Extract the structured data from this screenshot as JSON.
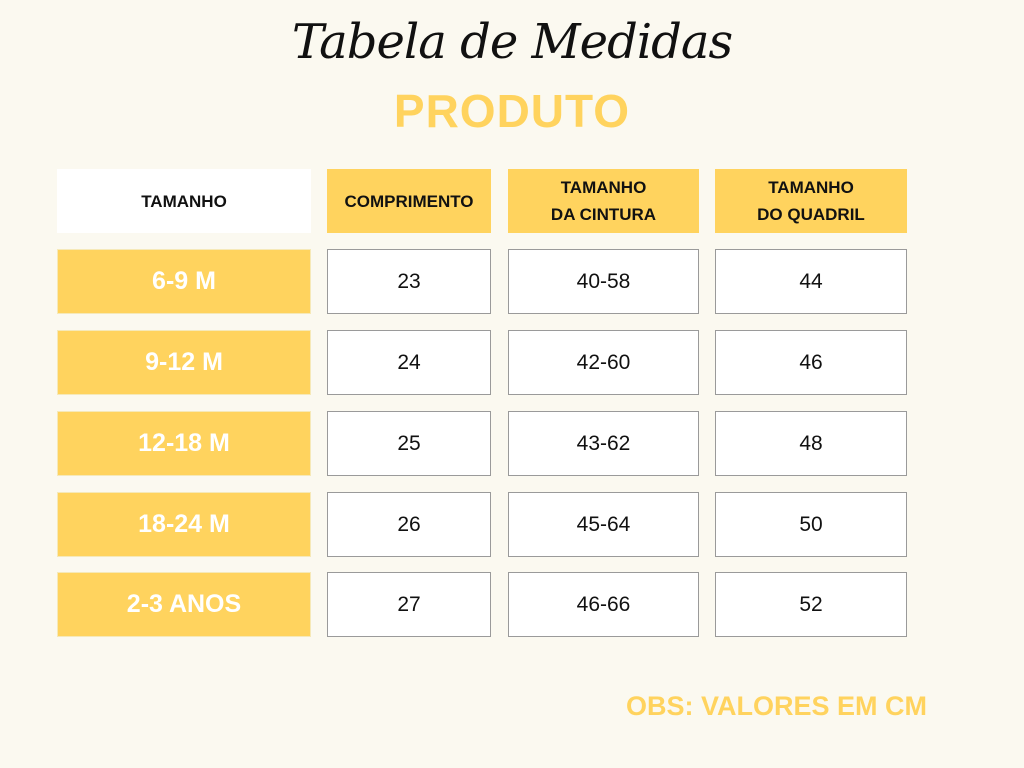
{
  "title": "Tabela de Medidas",
  "subtitle": "PRODUTO",
  "headers": [
    "TAMANHO",
    "COMPRIMENTO",
    "TAMANHO DA CINTURA",
    "TAMANHO DO QUADRIL"
  ],
  "rows": [
    {
      "size": "6-9 M",
      "comprimento": "23",
      "cintura": "40-58",
      "quadril": "44"
    },
    {
      "size": "9-12 M",
      "comprimento": "24",
      "cintura": "42-60",
      "quadril": "46"
    },
    {
      "size": "12-18 M",
      "comprimento": "25",
      "cintura": "43-62",
      "quadril": "48"
    },
    {
      "size": "18-24 M",
      "comprimento": "26",
      "cintura": "45-64",
      "quadril": "50"
    },
    {
      "size": "2-3 ANOS",
      "comprimento": "27",
      "cintura": "46-66",
      "quadril": "52"
    }
  ],
  "note": "OBS: VALORES EM CM",
  "colors": {
    "accent": "#ffd35e",
    "background": "#fbf9f0"
  }
}
